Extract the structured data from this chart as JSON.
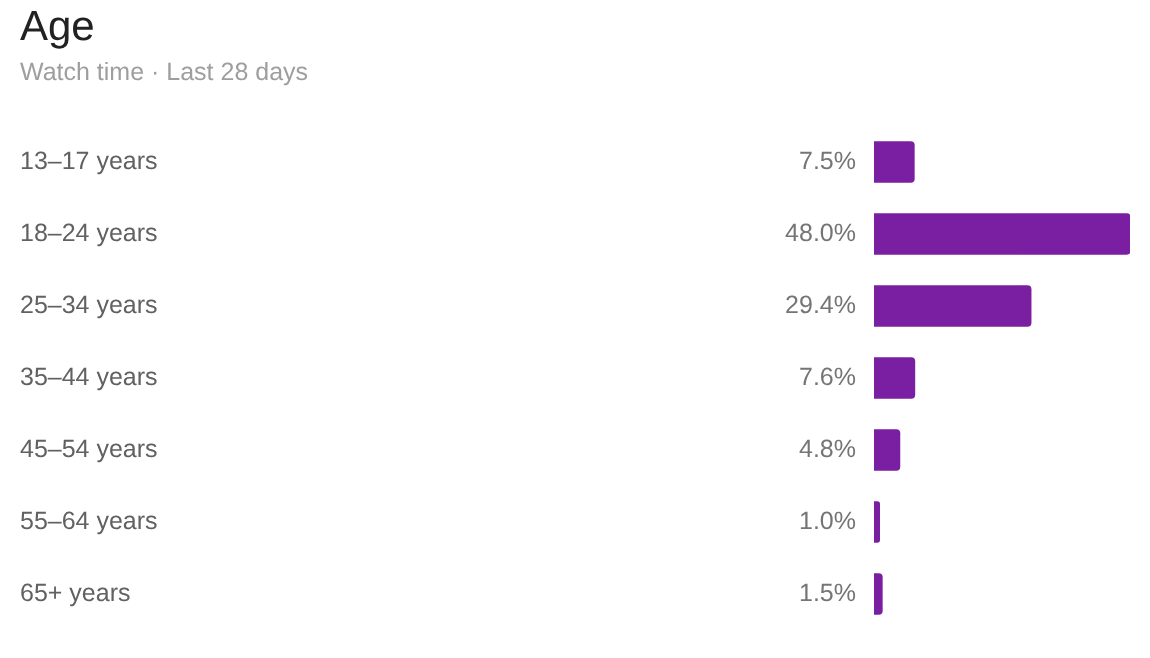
{
  "chart_data": {
    "type": "bar",
    "orientation": "horizontal",
    "title": "Age",
    "subtitle": "Watch time · Last 28 days",
    "categories": [
      "13–17 years",
      "18–24 years",
      "25–34 years",
      "35–44 years",
      "45–54 years",
      "55–64 years",
      "65+ years"
    ],
    "values": [
      7.5,
      48.0,
      29.4,
      7.6,
      4.8,
      1.0,
      1.5
    ],
    "value_labels": [
      "7.5%",
      "48.0%",
      "29.4%",
      "7.6%",
      "4.8%",
      "1.0%",
      "1.5%"
    ],
    "color": "#7b1fa2"
  }
}
